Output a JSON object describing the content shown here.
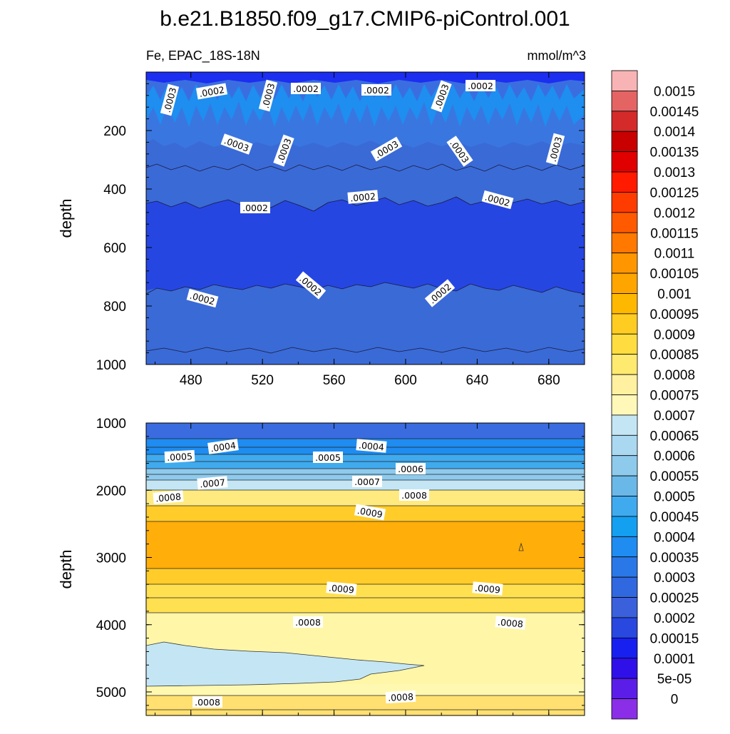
{
  "title": "b.e21.B1850.f09_g17.CMIP6-piControl.001",
  "subtitle_left": "Fe, EPAC_18S-18N",
  "subtitle_right": "mmol/m^3",
  "colorbar": {
    "labels": [
      "0.0015",
      "0.00145",
      "0.0014",
      "0.00135",
      "0.0013",
      "0.00125",
      "0.0012",
      "0.00115",
      "0.0011",
      "0.00105",
      "0.001",
      "0.00095",
      "0.0009",
      "0.00085",
      "0.0008",
      "0.00075",
      "0.0007",
      "0.00065",
      "0.0006",
      "0.00055",
      "0.0005",
      "0.00045",
      "0.0004",
      "0.00035",
      "0.0003",
      "0.00025",
      "0.0002",
      "0.00015",
      "0.0001",
      "5e-05",
      "0"
    ],
    "colors": [
      "#f8b4b4",
      "#e46464",
      "#d42a2a",
      "#c80000",
      "#e00000",
      "#ff1a00",
      "#ff3c00",
      "#ff5a00",
      "#ff7800",
      "#ff9600",
      "#ffa500",
      "#ffb800",
      "#ffcc22",
      "#ffdd40",
      "#ffea70",
      "#fff1a0",
      "#fff8b8",
      "#c4e6f4",
      "#aad8f0",
      "#8ecaec",
      "#6ab8e8",
      "#40aaee",
      "#14a0f0",
      "#1e8cf0",
      "#2a78e8",
      "#3068e0",
      "#3a60dc",
      "#2848e0",
      "#1820f0",
      "#3010e8",
      "#5a1ee8",
      "#8a2ee8"
    ]
  },
  "chart_data": [
    {
      "type": "contour",
      "panel": "upper",
      "title": "Fe, EPAC_18S-18N",
      "units": "mmol/m^3",
      "xlabel": "",
      "ylabel": "depth",
      "xlim": [
        455,
        700
      ],
      "ylim": [
        1000,
        0
      ],
      "xticks": [
        "480",
        "520",
        "560",
        "600",
        "640",
        "680"
      ],
      "yticks": [
        "200",
        "400",
        "600",
        "800",
        "1000"
      ],
      "contour_labels": [
        ".0003",
        ".0002",
        ".0003",
        ".0002",
        ".0002",
        ".0003",
        ".0002",
        ".0003",
        ".0003",
        ".0003",
        ".0003",
        ".0003",
        ".0002",
        ".0002",
        ".0002",
        ".0002",
        ".0002",
        ".0002"
      ],
      "bands": [
        {
          "depth_top": 0,
          "depth_bottom": 20,
          "value": 0.0001
        },
        {
          "depth_top": 20,
          "depth_bottom": 60,
          "value": 0.00025
        },
        {
          "depth_top": 60,
          "depth_bottom": 200,
          "value": 0.0003
        },
        {
          "depth_top": 200,
          "depth_bottom": 250,
          "value": 0.00025
        },
        {
          "depth_top": 250,
          "depth_bottom": 430,
          "value": 0.00025
        },
        {
          "depth_top": 430,
          "depth_bottom": 750,
          "value": 0.00015
        },
        {
          "depth_top": 750,
          "depth_bottom": 1000,
          "value": 0.0002
        }
      ]
    },
    {
      "type": "contour",
      "panel": "lower",
      "xlabel": "",
      "ylabel": "depth",
      "xlim": [
        455,
        700
      ],
      "ylim": [
        5350,
        1000
      ],
      "yticks": [
        "1000",
        "2000",
        "3000",
        "4000",
        "5000"
      ],
      "contour_labels": [
        ".0004",
        ".0005",
        ".0004",
        ".0005",
        ".0006",
        ".0007",
        ".0007",
        ".0008",
        ".0008",
        ".0009",
        ".0009",
        ".0009",
        ".0008",
        ".0008",
        ".0008",
        ".0008"
      ],
      "bands": [
        {
          "depth_top": 1000,
          "depth_bottom": 1200,
          "value": 0.0003
        },
        {
          "depth_top": 1200,
          "depth_bottom": 1450,
          "value": 0.0004
        },
        {
          "depth_top": 1450,
          "depth_bottom": 1650,
          "value": 0.0005
        },
        {
          "depth_top": 1650,
          "depth_bottom": 1850,
          "value": 0.0006
        },
        {
          "depth_top": 1850,
          "depth_bottom": 2000,
          "value": 0.0007
        },
        {
          "depth_top": 2000,
          "depth_bottom": 2300,
          "value": 0.0008
        },
        {
          "depth_top": 2300,
          "depth_bottom": 2500,
          "value": 0.0009
        },
        {
          "depth_top": 2500,
          "depth_bottom": 3200,
          "value": 0.001
        },
        {
          "depth_top": 3200,
          "depth_bottom": 3800,
          "value": 0.0009
        },
        {
          "depth_top": 3800,
          "depth_bottom": 4300,
          "value": 0.00085
        },
        {
          "depth_top": 4300,
          "depth_bottom": 4900,
          "value": 0.0007
        },
        {
          "depth_top": 4900,
          "depth_bottom": 5350,
          "value": 0.0008
        }
      ]
    }
  ]
}
